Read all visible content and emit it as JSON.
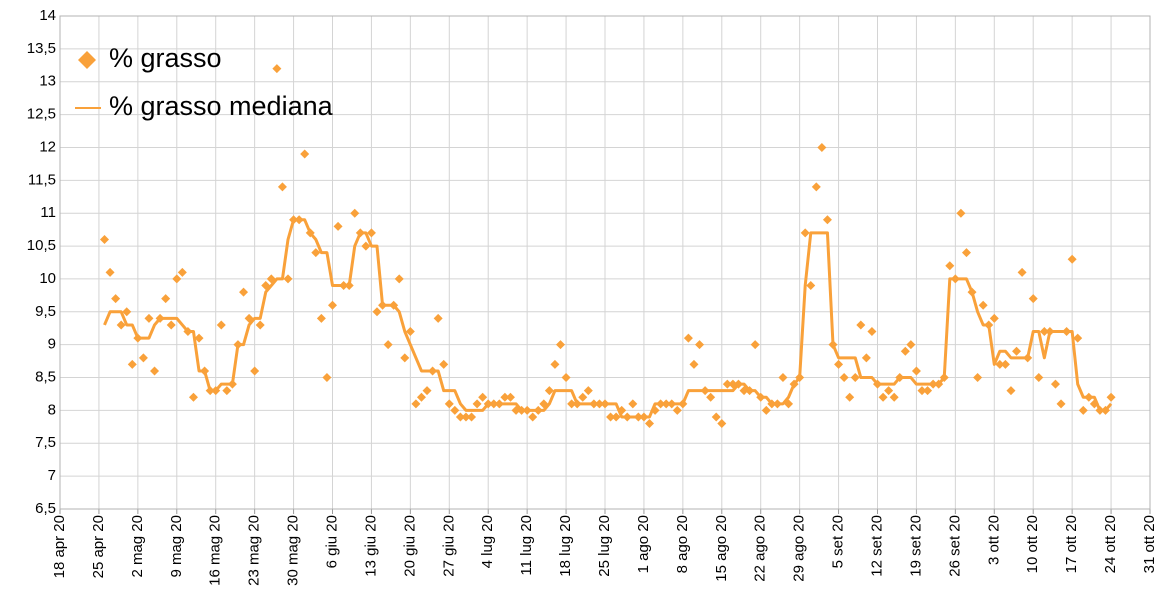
{
  "chart_data": {
    "type": "line",
    "x": [
      "2020-04-26",
      "2020-04-27",
      "2020-04-28",
      "2020-04-29",
      "2020-04-30",
      "2020-05-01",
      "2020-05-02",
      "2020-05-03",
      "2020-05-04",
      "2020-05-05",
      "2020-05-06",
      "2020-05-07",
      "2020-05-08",
      "2020-05-09",
      "2020-05-10",
      "2020-05-11",
      "2020-05-12",
      "2020-05-13",
      "2020-05-14",
      "2020-05-15",
      "2020-05-16",
      "2020-05-17",
      "2020-05-18",
      "2020-05-19",
      "2020-05-20",
      "2020-05-21",
      "2020-05-22",
      "2020-05-23",
      "2020-05-24",
      "2020-05-25",
      "2020-05-26",
      "2020-05-27",
      "2020-05-28",
      "2020-05-29",
      "2020-05-30",
      "2020-05-31",
      "2020-06-01",
      "2020-06-02",
      "2020-06-03",
      "2020-06-04",
      "2020-06-05",
      "2020-06-06",
      "2020-06-07",
      "2020-06-08",
      "2020-06-09",
      "2020-06-10",
      "2020-06-11",
      "2020-06-12",
      "2020-06-13",
      "2020-06-14",
      "2020-06-15",
      "2020-06-16",
      "2020-06-17",
      "2020-06-18",
      "2020-06-19",
      "2020-06-20",
      "2020-06-21",
      "2020-06-22",
      "2020-06-23",
      "2020-06-24",
      "2020-06-25",
      "2020-06-26",
      "2020-06-27",
      "2020-06-28",
      "2020-06-29",
      "2020-06-30",
      "2020-07-01",
      "2020-07-02",
      "2020-07-03",
      "2020-07-04",
      "2020-07-05",
      "2020-07-06",
      "2020-07-07",
      "2020-07-08",
      "2020-07-09",
      "2020-07-10",
      "2020-07-11",
      "2020-07-12",
      "2020-07-13",
      "2020-07-14",
      "2020-07-15",
      "2020-07-16",
      "2020-07-17",
      "2020-07-18",
      "2020-07-19",
      "2020-07-20",
      "2020-07-21",
      "2020-07-22",
      "2020-07-23",
      "2020-07-24",
      "2020-07-25",
      "2020-07-26",
      "2020-07-27",
      "2020-07-28",
      "2020-07-29",
      "2020-07-30",
      "2020-07-31",
      "2020-08-01",
      "2020-08-02",
      "2020-08-03",
      "2020-08-04",
      "2020-08-05",
      "2020-08-06",
      "2020-08-07",
      "2020-08-08",
      "2020-08-09",
      "2020-08-10",
      "2020-08-11",
      "2020-08-12",
      "2020-08-13",
      "2020-08-14",
      "2020-08-15",
      "2020-08-16",
      "2020-08-17",
      "2020-08-18",
      "2020-08-19",
      "2020-08-20",
      "2020-08-21",
      "2020-08-22",
      "2020-08-23",
      "2020-08-24",
      "2020-08-25",
      "2020-08-26",
      "2020-08-27",
      "2020-08-28",
      "2020-08-29",
      "2020-08-30",
      "2020-08-31",
      "2020-09-01",
      "2020-09-02",
      "2020-09-03",
      "2020-09-04",
      "2020-09-05",
      "2020-09-06",
      "2020-09-07",
      "2020-09-08",
      "2020-09-09",
      "2020-09-10",
      "2020-09-11",
      "2020-09-12",
      "2020-09-13",
      "2020-09-14",
      "2020-09-15",
      "2020-09-16",
      "2020-09-17",
      "2020-09-18",
      "2020-09-19",
      "2020-09-20",
      "2020-09-21",
      "2020-09-22",
      "2020-09-23",
      "2020-09-24",
      "2020-09-25",
      "2020-09-26",
      "2020-09-27",
      "2020-09-28",
      "2020-09-29",
      "2020-09-30",
      "2020-10-01",
      "2020-10-02",
      "2020-10-03",
      "2020-10-04",
      "2020-10-05",
      "2020-10-06",
      "2020-10-07",
      "2020-10-08",
      "2020-10-09",
      "2020-10-10",
      "2020-10-11",
      "2020-10-12",
      "2020-10-13",
      "2020-10-14",
      "2020-10-15",
      "2020-10-16",
      "2020-10-17",
      "2020-10-18",
      "2020-10-19",
      "2020-10-20",
      "2020-10-21",
      "2020-10-22",
      "2020-10-23",
      "2020-10-24"
    ],
    "series": [
      {
        "name": "% grasso",
        "type": "scatter",
        "color": "#f9a13a",
        "values": [
          10.6,
          10.1,
          9.7,
          9.3,
          9.5,
          8.7,
          9.1,
          8.8,
          9.4,
          8.6,
          9.4,
          9.7,
          9.3,
          10.0,
          10.1,
          9.2,
          8.2,
          9.1,
          8.6,
          8.3,
          8.3,
          9.3,
          8.3,
          8.4,
          9.0,
          9.8,
          9.4,
          8.6,
          9.3,
          9.9,
          10.0,
          13.2,
          11.4,
          10.0,
          10.9,
          10.9,
          11.9,
          10.7,
          10.4,
          9.4,
          8.5,
          9.6,
          10.8,
          9.9,
          9.9,
          11.0,
          10.7,
          10.5,
          10.7,
          9.5,
          9.6,
          9.0,
          9.6,
          10.0,
          8.8,
          9.2,
          8.1,
          8.2,
          8.3,
          8.6,
          9.4,
          8.7,
          8.1,
          8.0,
          7.9,
          7.9,
          7.9,
          8.1,
          8.2,
          8.1,
          8.1,
          8.1,
          8.2,
          8.2,
          8.0,
          8.0,
          8.0,
          7.9,
          8.0,
          8.1,
          8.3,
          8.7,
          9.0,
          8.5,
          8.1,
          8.1,
          8.2,
          8.3,
          8.1,
          8.1,
          8.1,
          7.9,
          7.9,
          8.0,
          7.9,
          8.1,
          7.9,
          7.9,
          7.8,
          8.0,
          8.1,
          8.1,
          8.1,
          8.0,
          8.1,
          9.1,
          8.7,
          9.0,
          8.3,
          8.2,
          7.9,
          7.8,
          8.4,
          8.4,
          8.4,
          8.3,
          8.3,
          9.0,
          8.2,
          8.0,
          8.1,
          8.1,
          8.5,
          8.1,
          8.4,
          8.5,
          10.7,
          9.9,
          11.4,
          12.0,
          10.9,
          9.0,
          8.7,
          8.5,
          8.2,
          8.5,
          9.3,
          8.8,
          9.2,
          8.4,
          8.2,
          8.3,
          8.2,
          8.5,
          8.9,
          9.0,
          8.6,
          8.3,
          8.3,
          8.4,
          8.4,
          8.5,
          10.2,
          10.0,
          11.0,
          10.4,
          9.8,
          8.5,
          9.6,
          9.3,
          9.4,
          8.7,
          8.7,
          8.3,
          8.9,
          10.1,
          8.8,
          9.7,
          8.5,
          9.2,
          9.2,
          8.4,
          8.1,
          9.2,
          10.3,
          9.1,
          8.0,
          8.2,
          8.1,
          8.0,
          8.0,
          8.2
        ]
      },
      {
        "name": "% grasso mediana",
        "type": "line",
        "color": "#f9a13a",
        "values": [
          9.3,
          9.5,
          9.5,
          9.5,
          9.3,
          9.3,
          9.1,
          9.1,
          9.1,
          9.3,
          9.4,
          9.4,
          9.4,
          9.4,
          9.3,
          9.2,
          9.2,
          8.6,
          8.6,
          8.3,
          8.3,
          8.4,
          8.4,
          8.4,
          9.0,
          9.0,
          9.3,
          9.4,
          9.4,
          9.8,
          9.9,
          10.0,
          10.0,
          10.6,
          10.9,
          10.9,
          10.9,
          10.7,
          10.6,
          10.4,
          10.4,
          9.9,
          9.9,
          9.9,
          9.9,
          10.5,
          10.7,
          10.7,
          10.5,
          10.5,
          9.6,
          9.6,
          9.6,
          9.5,
          9.2,
          9.0,
          8.8,
          8.6,
          8.6,
          8.6,
          8.6,
          8.3,
          8.3,
          8.3,
          8.1,
          8.0,
          8.0,
          8.0,
          8.0,
          8.1,
          8.1,
          8.1,
          8.1,
          8.1,
          8.1,
          8.0,
          8.0,
          8.0,
          8.0,
          8.0,
          8.1,
          8.3,
          8.3,
          8.3,
          8.3,
          8.1,
          8.1,
          8.1,
          8.1,
          8.1,
          8.1,
          8.1,
          8.1,
          7.9,
          7.9,
          7.9,
          7.9,
          7.9,
          7.9,
          8.1,
          8.1,
          8.1,
          8.1,
          8.1,
          8.1,
          8.3,
          8.3,
          8.3,
          8.3,
          8.3,
          8.3,
          8.3,
          8.3,
          8.3,
          8.4,
          8.4,
          8.3,
          8.3,
          8.2,
          8.2,
          8.1,
          8.1,
          8.1,
          8.2,
          8.4,
          8.5,
          9.9,
          10.7,
          10.7,
          10.7,
          10.7,
          9.0,
          8.8,
          8.8,
          8.8,
          8.8,
          8.5,
          8.5,
          8.5,
          8.4,
          8.4,
          8.4,
          8.4,
          8.5,
          8.5,
          8.5,
          8.4,
          8.4,
          8.4,
          8.4,
          8.4,
          8.5,
          10.0,
          10.0,
          10.0,
          10.0,
          9.8,
          9.5,
          9.3,
          9.3,
          8.7,
          8.9,
          8.9,
          8.8,
          8.8,
          8.8,
          8.8,
          9.2,
          9.2,
          8.8,
          9.2,
          9.2,
          9.2,
          9.2,
          9.2,
          8.4,
          8.2,
          8.2,
          8.2,
          8.0,
          8.0,
          8.1
        ]
      }
    ],
    "xlim": [
      "2020-04-18",
      "2020-10-31"
    ],
    "xticks": [
      {
        "value": "2020-04-18",
        "label": "18 apr 20"
      },
      {
        "value": "2020-04-25",
        "label": "25 apr 20"
      },
      {
        "value": "2020-05-02",
        "label": "2 mag 20"
      },
      {
        "value": "2020-05-09",
        "label": "9 mag 20"
      },
      {
        "value": "2020-05-16",
        "label": "16 mag 20"
      },
      {
        "value": "2020-05-23",
        "label": "23 mag 20"
      },
      {
        "value": "2020-05-30",
        "label": "30 mag 20"
      },
      {
        "value": "2020-06-06",
        "label": "6 giu 20"
      },
      {
        "value": "2020-06-13",
        "label": "13 giu 20"
      },
      {
        "value": "2020-06-20",
        "label": "20 giu 20"
      },
      {
        "value": "2020-06-27",
        "label": "27 giu 20"
      },
      {
        "value": "2020-07-04",
        "label": "4 lug 20"
      },
      {
        "value": "2020-07-11",
        "label": "11 lug 20"
      },
      {
        "value": "2020-07-18",
        "label": "18 lug 20"
      },
      {
        "value": "2020-07-25",
        "label": "25 lug 20"
      },
      {
        "value": "2020-08-01",
        "label": "1 ago 20"
      },
      {
        "value": "2020-08-08",
        "label": "8 ago 20"
      },
      {
        "value": "2020-08-15",
        "label": "15 ago 20"
      },
      {
        "value": "2020-08-22",
        "label": "22 ago 20"
      },
      {
        "value": "2020-08-29",
        "label": "29 ago 20"
      },
      {
        "value": "2020-09-05",
        "label": "5 set 20"
      },
      {
        "value": "2020-09-12",
        "label": "12 set 20"
      },
      {
        "value": "2020-09-19",
        "label": "19 set 20"
      },
      {
        "value": "2020-09-26",
        "label": "26 set 20"
      },
      {
        "value": "2020-10-03",
        "label": "3 ott 20"
      },
      {
        "value": "2020-10-10",
        "label": "10 ott 20"
      },
      {
        "value": "2020-10-17",
        "label": "17 ott 20"
      },
      {
        "value": "2020-10-24",
        "label": "24 ott 20"
      },
      {
        "value": "2020-10-31",
        "label": "31 ott 20"
      }
    ],
    "ylim": [
      6.5,
      14
    ],
    "yticks": [
      {
        "value": 6.5,
        "label": "6,5"
      },
      7,
      {
        "value": 7.5,
        "label": "7,5"
      },
      8,
      {
        "value": 8.5,
        "label": "8,5"
      },
      9,
      {
        "value": 9.5,
        "label": "9,5"
      },
      10,
      {
        "value": 10.5,
        "label": "10,5"
      },
      11,
      {
        "value": 11.5,
        "label": "11,5"
      },
      12,
      {
        "value": 12.5,
        "label": "12,5"
      },
      13,
      {
        "value": 13.5,
        "label": "13,5"
      },
      14
    ],
    "grid": true,
    "legend": "top-left"
  }
}
